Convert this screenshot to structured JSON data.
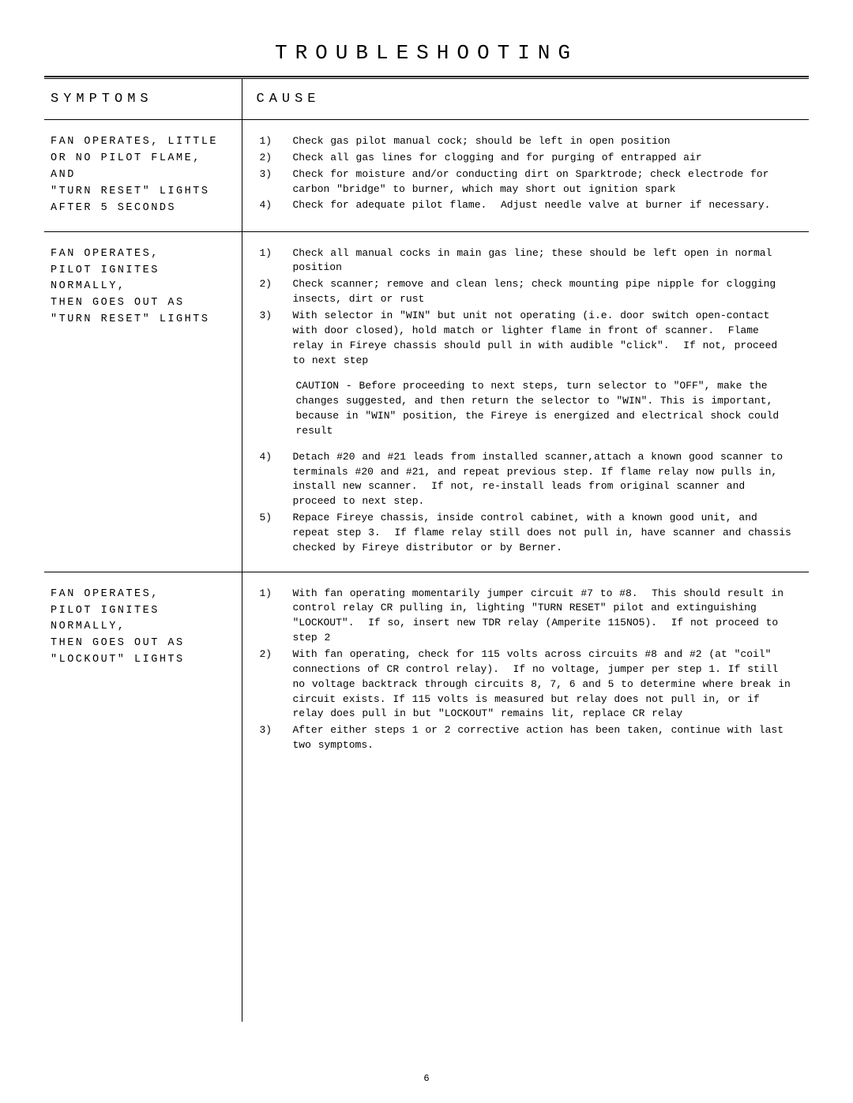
{
  "page_title": "TROUBLESHOOTING",
  "page_number": "6",
  "headers": {
    "symptoms": "SYMPTOMS",
    "cause": "CAUSE"
  },
  "rows": [
    {
      "symptom": "FAN OPERATES, LITTLE\nOR NO PILOT FLAME, AND\n\"TURN RESET\" LIGHTS\nAFTER 5 SECONDS",
      "causes": [
        {
          "n": "1)",
          "t": "Check gas pilot manual cock; should be left in open position"
        },
        {
          "n": "2)",
          "t": "Check all gas lines for clogging and for purging of entrapped air"
        },
        {
          "n": "3)",
          "t": "Check for moisture and/or conducting dirt on Sparktrode; check electrode for carbon \"bridge\" to burner, which may short out ignition spark"
        },
        {
          "n": "4)",
          "t": "Check for adequate pilot flame.  Adjust needle valve at burner if necessary."
        }
      ]
    },
    {
      "symptom": "FAN OPERATES,\nPILOT IGNITES NORMALLY,\nTHEN GOES OUT AS\n\"TURN RESET\" LIGHTS",
      "causes": [
        {
          "n": "1)",
          "t": "Check all manual cocks in main gas line; these should be left open in normal position"
        },
        {
          "n": "2)",
          "t": "Check scanner; remove and clean lens; check mounting pipe nipple for clogging insects, dirt or rust"
        },
        {
          "n": "3)",
          "t": "With selector in \"WIN\" but unit not operating (i.e. door switch open-contact with door closed), hold match or lighter flame in front of scanner.  Flame relay in Fireye chassis should pull in with audible \"click\".  If not, proceed to next step"
        }
      ],
      "extra_paragraph": "CAUTION - Before proceeding to next steps, turn selector to \"OFF\", make the changes suggested, and then return the selector to \"WIN\". This is important, because in \"WIN\" position, the Fireye is energized and electrical shock could result",
      "causes_after": [
        {
          "n": "4)",
          "t": "Detach #20 and #21 leads from installed scanner,attach a known good scanner to terminals #20 and #21, and repeat previous step. If flame relay now pulls in, install new scanner.  If not, re-install leads from original scanner and proceed to next step."
        },
        {
          "n": "5)",
          "t": "Repace Fireye chassis, inside control cabinet, with a known good unit, and repeat step 3.  If flame relay still does not pull in, have scanner and chassis checked by Fireye distributor or by Berner."
        }
      ]
    },
    {
      "symptom": "FAN OPERATES,\nPILOT IGNITES NORMALLY,\nTHEN GOES OUT AS\n\"LOCKOUT\" LIGHTS",
      "causes": [
        {
          "n": "1)",
          "t": "With fan operating momentarily jumper circuit #7 to #8.  This should result in control relay CR pulling in, lighting \"TURN RESET\" pilot and extinguishing \"LOCKOUT\".  If so, insert new TDR relay (Amperite 115NO5).  If not proceed to step 2"
        },
        {
          "n": "2)",
          "t": "With fan operating, check for 115 volts across circuits #8 and #2 (at \"coil\" connections of CR control relay).  If no voltage, jumper per step 1. If still no voltage backtrack through circuits 8, 7, 6 and 5 to determine where break in circuit exists. If 115 volts is measured but relay does not pull in, or if relay does pull in but \"LOCKOUT\" remains lit, replace CR relay"
        },
        {
          "n": "3)",
          "t": "After either steps 1 or 2 corrective action has been taken, continue with last two symptoms."
        }
      ]
    }
  ]
}
